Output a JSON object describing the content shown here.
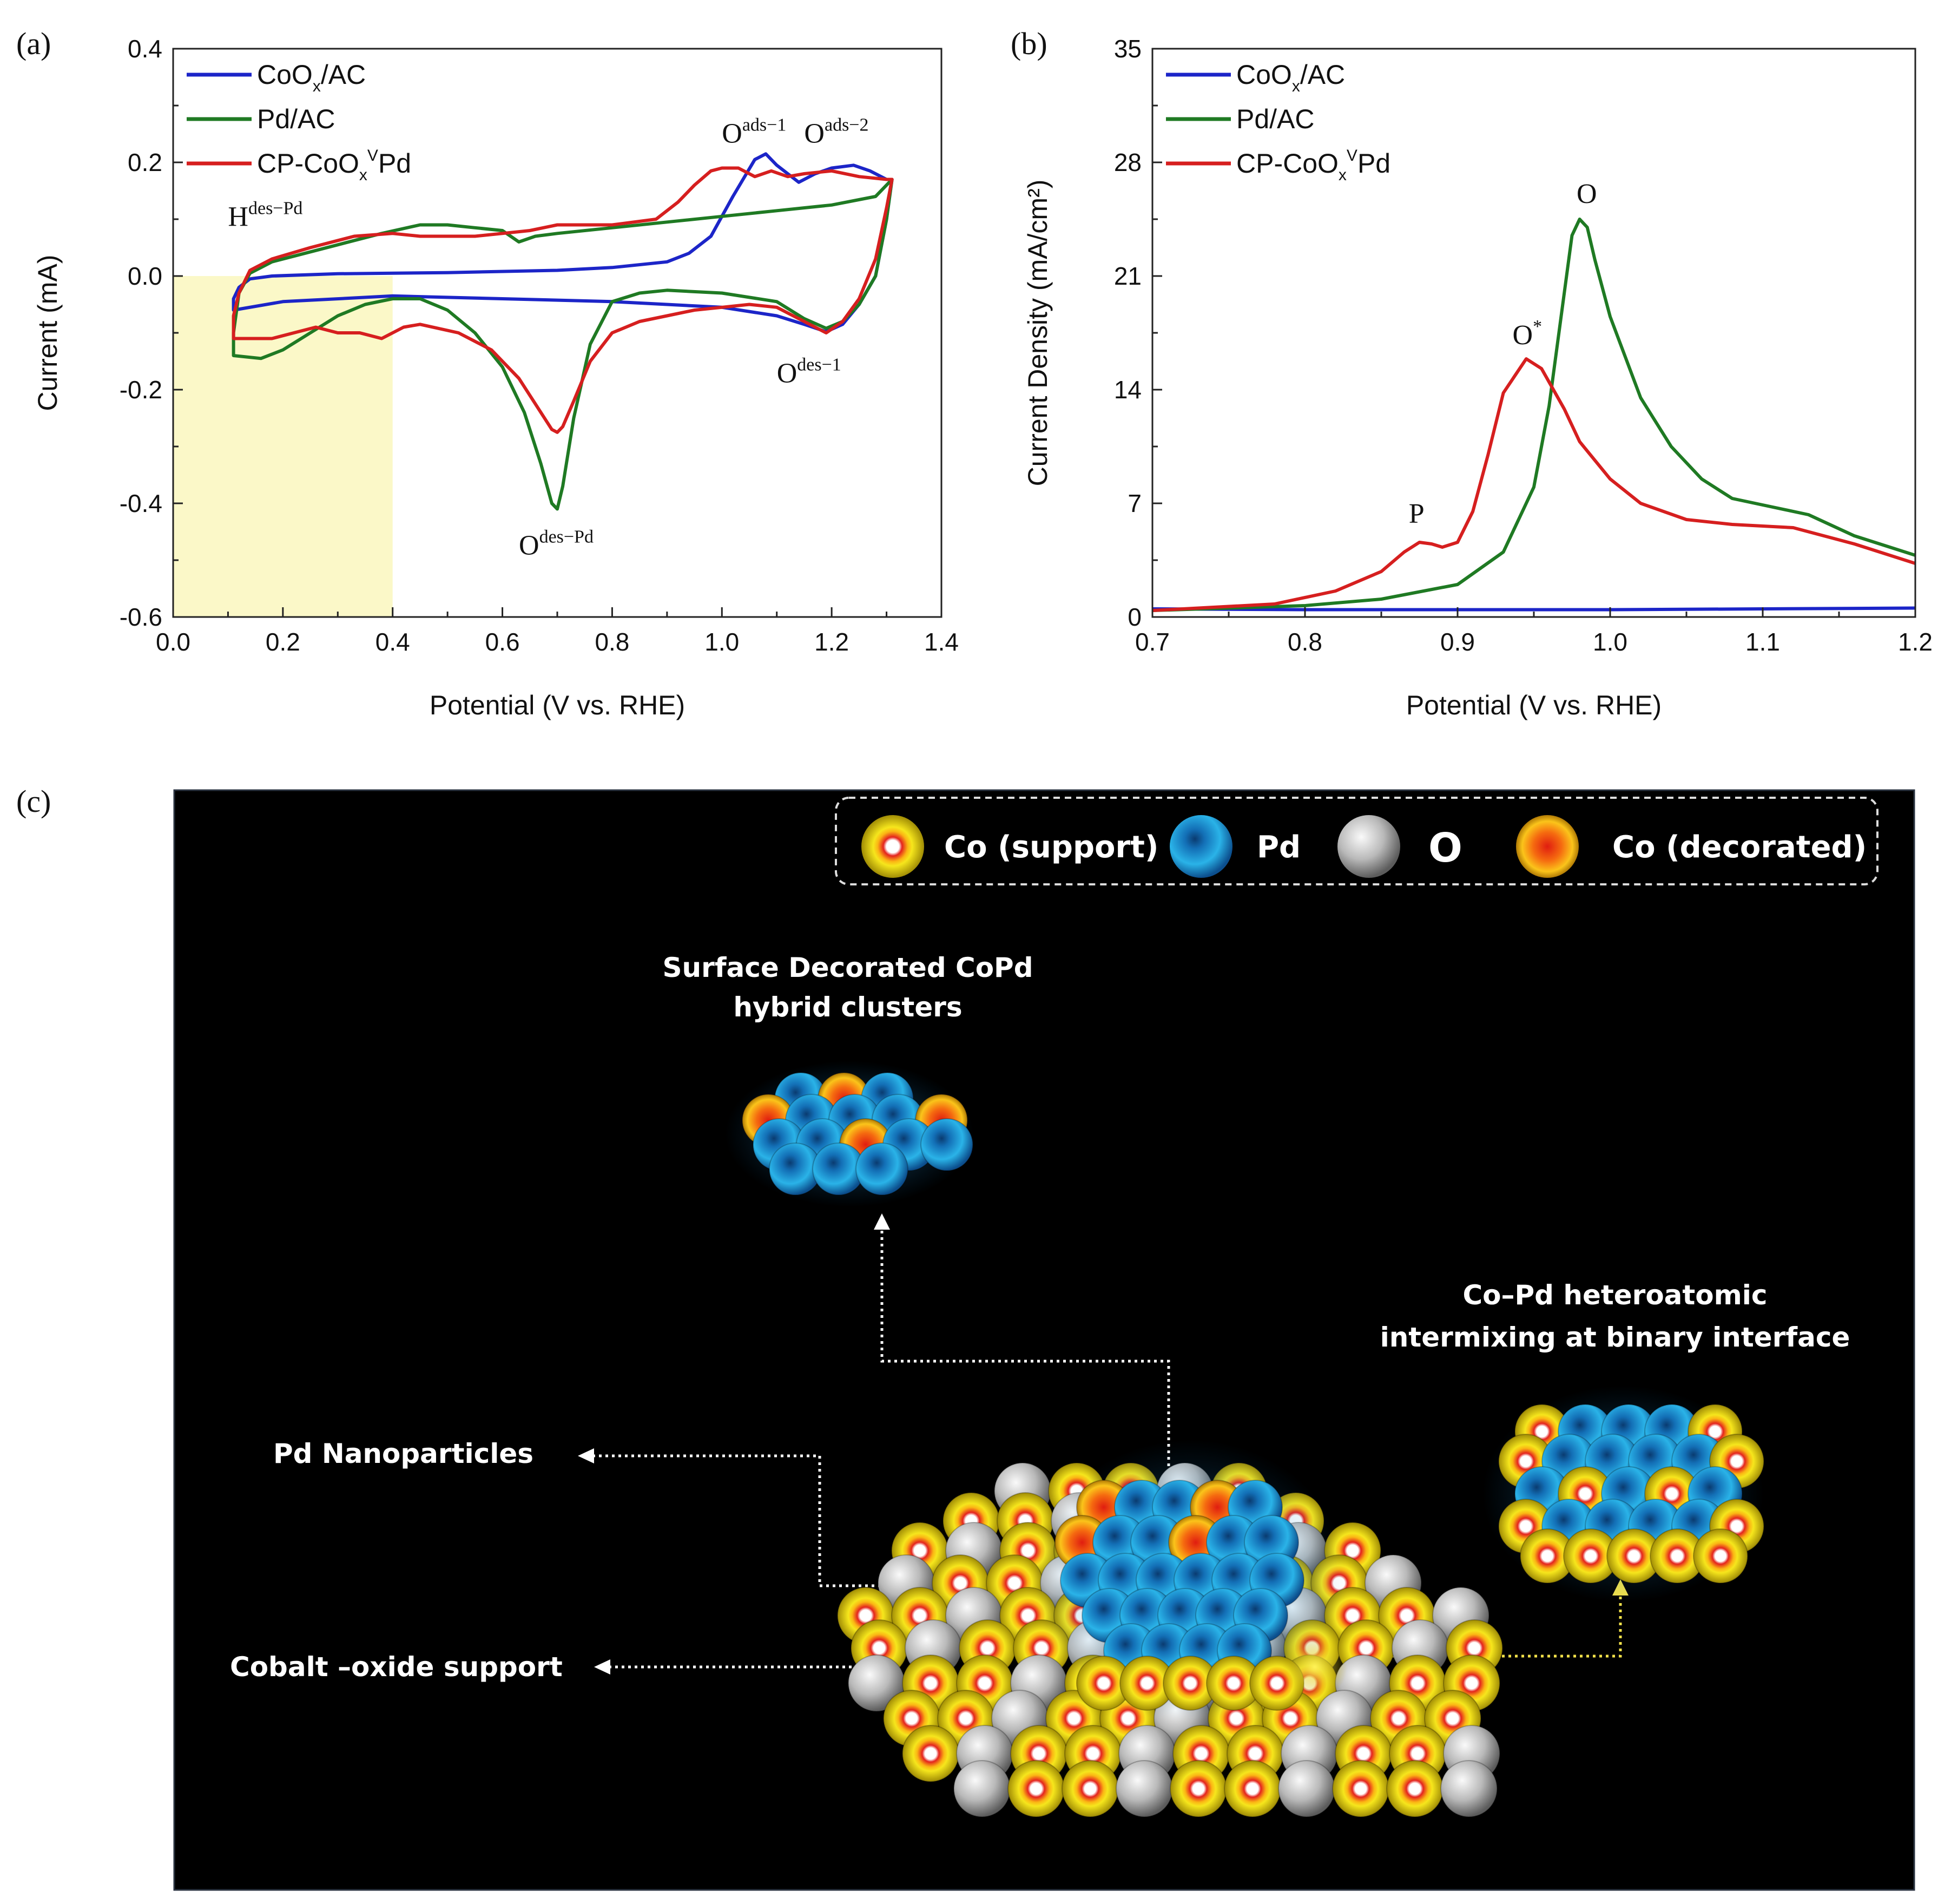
{
  "panel_labels": {
    "a": "(a)",
    "b": "(b)",
    "c": "(c)"
  },
  "colors": {
    "coox_ac": "#1c25c8",
    "pd_ac": "#1f7a23",
    "cp_coox_pd": "#d61f1f",
    "highlight": "#fbf8c8",
    "co_support": "#f2e21a",
    "pd": "#1e9ad6",
    "o": "#b4b4b4",
    "co_decorated": "#f05a14",
    "background": "#000000"
  },
  "chart_data": [
    {
      "id": "a",
      "type": "line",
      "title": "",
      "xlabel": "Potential (V vs. RHE)",
      "ylabel": "Current (mA)",
      "xlim": [
        0.0,
        1.4
      ],
      "ylim": [
        -0.6,
        0.4
      ],
      "xticks": [
        "0.0",
        "0.2",
        "0.4",
        "0.6",
        "0.8",
        "1.0",
        "1.2",
        "1.4"
      ],
      "yticks": [
        "-0.6",
        "-0.4",
        "-0.2",
        "0.0",
        "0.2",
        "0.4"
      ],
      "legend": {
        "position": "top-left",
        "entries": [
          {
            "base": "CoO",
            "sub": "x",
            "sup": "",
            "rest": "/AC"
          },
          {
            "base": "Pd/AC",
            "sub": "",
            "sup": "",
            "rest": ""
          },
          {
            "base": "CP-CoO",
            "sub": "x",
            "sup": "V",
            "rest": "Pd"
          }
        ]
      },
      "highlight_region": {
        "x": [
          0.0,
          0.4
        ],
        "y": [
          -0.6,
          0.0
        ]
      },
      "annotations": [
        {
          "main": "H",
          "sup": "des−Pd",
          "x": 0.1,
          "y": 0.088
        },
        {
          "main": "O",
          "sup": "ads−1",
          "x": 1.0,
          "y": 0.235
        },
        {
          "main": "O",
          "sup": "ads−2",
          "x": 1.15,
          "y": 0.235
        },
        {
          "main": "O",
          "sup": "des−1",
          "x": 1.1,
          "y": -0.187
        },
        {
          "main": "O",
          "sup": "des−Pd",
          "x": 0.63,
          "y": -0.49
        }
      ],
      "series": [
        {
          "name": "CoOx/AC",
          "color": "#1c25c8",
          "points": [
            [
              0.11,
              -0.06
            ],
            [
              0.11,
              -0.04
            ],
            [
              0.12,
              -0.02
            ],
            [
              0.14,
              -0.005
            ],
            [
              0.18,
              0.0
            ],
            [
              0.3,
              0.004
            ],
            [
              0.5,
              0.006
            ],
            [
              0.7,
              0.01
            ],
            [
              0.8,
              0.015
            ],
            [
              0.9,
              0.025
            ],
            [
              0.94,
              0.04
            ],
            [
              0.98,
              0.07
            ],
            [
              1.02,
              0.14
            ],
            [
              1.06,
              0.205
            ],
            [
              1.08,
              0.215
            ],
            [
              1.1,
              0.195
            ],
            [
              1.14,
              0.165
            ],
            [
              1.17,
              0.18
            ],
            [
              1.2,
              0.19
            ],
            [
              1.24,
              0.195
            ],
            [
              1.27,
              0.185
            ],
            [
              1.3,
              0.17
            ],
            [
              1.31,
              0.17
            ],
            [
              1.3,
              0.1
            ],
            [
              1.28,
              0.0
            ],
            [
              1.25,
              -0.05
            ],
            [
              1.22,
              -0.085
            ],
            [
              1.19,
              -0.098
            ],
            [
              1.15,
              -0.085
            ],
            [
              1.1,
              -0.07
            ],
            [
              1.0,
              -0.055
            ],
            [
              0.8,
              -0.045
            ],
            [
              0.6,
              -0.04
            ],
            [
              0.4,
              -0.035
            ],
            [
              0.2,
              -0.045
            ],
            [
              0.11,
              -0.06
            ]
          ]
        },
        {
          "name": "Pd/AC",
          "color": "#1f7a23",
          "points": [
            [
              0.11,
              -0.14
            ],
            [
              0.11,
              -0.1
            ],
            [
              0.12,
              -0.03
            ],
            [
              0.14,
              0.005
            ],
            [
              0.18,
              0.025
            ],
            [
              0.22,
              0.035
            ],
            [
              0.3,
              0.055
            ],
            [
              0.38,
              0.075
            ],
            [
              0.45,
              0.09
            ],
            [
              0.5,
              0.09
            ],
            [
              0.55,
              0.085
            ],
            [
              0.6,
              0.08
            ],
            [
              0.63,
              0.06
            ],
            [
              0.66,
              0.07
            ],
            [
              0.7,
              0.075
            ],
            [
              0.8,
              0.085
            ],
            [
              0.9,
              0.095
            ],
            [
              1.0,
              0.105
            ],
            [
              1.1,
              0.115
            ],
            [
              1.2,
              0.125
            ],
            [
              1.28,
              0.14
            ],
            [
              1.31,
              0.17
            ],
            [
              1.3,
              0.1
            ],
            [
              1.28,
              0.0
            ],
            [
              1.25,
              -0.05
            ],
            [
              1.22,
              -0.08
            ],
            [
              1.19,
              -0.092
            ],
            [
              1.15,
              -0.075
            ],
            [
              1.1,
              -0.045
            ],
            [
              1.0,
              -0.03
            ],
            [
              0.9,
              -0.025
            ],
            [
              0.85,
              -0.03
            ],
            [
              0.8,
              -0.045
            ],
            [
              0.76,
              -0.12
            ],
            [
              0.73,
              -0.25
            ],
            [
              0.71,
              -0.37
            ],
            [
              0.7,
              -0.41
            ],
            [
              0.69,
              -0.4
            ],
            [
              0.67,
              -0.33
            ],
            [
              0.64,
              -0.24
            ],
            [
              0.6,
              -0.16
            ],
            [
              0.55,
              -0.1
            ],
            [
              0.5,
              -0.06
            ],
            [
              0.45,
              -0.04
            ],
            [
              0.4,
              -0.04
            ],
            [
              0.35,
              -0.05
            ],
            [
              0.3,
              -0.07
            ],
            [
              0.25,
              -0.1
            ],
            [
              0.2,
              -0.13
            ],
            [
              0.16,
              -0.145
            ],
            [
              0.11,
              -0.14
            ]
          ]
        },
        {
          "name": "CP-CoOxVPd",
          "color": "#d61f1f",
          "points": [
            [
              0.11,
              -0.11
            ],
            [
              0.11,
              -0.07
            ],
            [
              0.12,
              -0.03
            ],
            [
              0.14,
              0.01
            ],
            [
              0.18,
              0.03
            ],
            [
              0.25,
              0.05
            ],
            [
              0.33,
              0.07
            ],
            [
              0.4,
              0.075
            ],
            [
              0.45,
              0.07
            ],
            [
              0.5,
              0.07
            ],
            [
              0.55,
              0.07
            ],
            [
              0.6,
              0.075
            ],
            [
              0.65,
              0.08
            ],
            [
              0.7,
              0.09
            ],
            [
              0.8,
              0.09
            ],
            [
              0.88,
              0.1
            ],
            [
              0.92,
              0.13
            ],
            [
              0.95,
              0.16
            ],
            [
              0.98,
              0.185
            ],
            [
              1.0,
              0.19
            ],
            [
              1.03,
              0.19
            ],
            [
              1.06,
              0.175
            ],
            [
              1.09,
              0.185
            ],
            [
              1.12,
              0.175
            ],
            [
              1.15,
              0.18
            ],
            [
              1.2,
              0.185
            ],
            [
              1.25,
              0.175
            ],
            [
              1.3,
              0.17
            ],
            [
              1.31,
              0.17
            ],
            [
              1.3,
              0.12
            ],
            [
              1.28,
              0.03
            ],
            [
              1.25,
              -0.04
            ],
            [
              1.22,
              -0.08
            ],
            [
              1.19,
              -0.1
            ],
            [
              1.15,
              -0.08
            ],
            [
              1.1,
              -0.055
            ],
            [
              1.05,
              -0.05
            ],
            [
              1.0,
              -0.055
            ],
            [
              0.95,
              -0.06
            ],
            [
              0.9,
              -0.07
            ],
            [
              0.85,
              -0.08
            ],
            [
              0.8,
              -0.1
            ],
            [
              0.76,
              -0.15
            ],
            [
              0.73,
              -0.22
            ],
            [
              0.71,
              -0.265
            ],
            [
              0.7,
              -0.275
            ],
            [
              0.69,
              -0.27
            ],
            [
              0.67,
              -0.24
            ],
            [
              0.63,
              -0.18
            ],
            [
              0.58,
              -0.13
            ],
            [
              0.52,
              -0.1
            ],
            [
              0.45,
              -0.085
            ],
            [
              0.42,
              -0.09
            ],
            [
              0.38,
              -0.11
            ],
            [
              0.34,
              -0.1
            ],
            [
              0.3,
              -0.1
            ],
            [
              0.26,
              -0.09
            ],
            [
              0.22,
              -0.1
            ],
            [
              0.18,
              -0.11
            ],
            [
              0.11,
              -0.11
            ]
          ]
        }
      ]
    },
    {
      "id": "b",
      "type": "line",
      "title": "",
      "xlabel": "Potential (V vs. RHE)",
      "ylabel": "Current Density (mA/cm²)",
      "xlim": [
        0.7,
        1.2
      ],
      "ylim": [
        0,
        35
      ],
      "xticks": [
        "0.7",
        "0.8",
        "0.9",
        "1.0",
        "1.1",
        "1.2"
      ],
      "yticks": [
        "0",
        "7",
        "14",
        "21",
        "28",
        "35"
      ],
      "legend": {
        "position": "top-left",
        "entries": [
          {
            "base": "CoO",
            "sub": "x",
            "sup": "",
            "rest": "/AC"
          },
          {
            "base": "Pd/AC",
            "sub": "",
            "sup": "",
            "rest": ""
          },
          {
            "base": "CP-CoO",
            "sub": "x",
            "sup": "V",
            "rest": "Pd"
          }
        ]
      },
      "annotations": [
        {
          "main": "P",
          "sup": "",
          "x": 0.868,
          "y": 5.8
        },
        {
          "main": "O",
          "sup": "*",
          "x": 0.936,
          "y": 16.8
        },
        {
          "main": "O",
          "sup": "",
          "x": 0.978,
          "y": 25.5
        }
      ],
      "series": [
        {
          "name": "CoOx/AC",
          "color": "#1c25c8",
          "points": [
            [
              0.7,
              0.5
            ],
            [
              0.8,
              0.45
            ],
            [
              0.9,
              0.45
            ],
            [
              1.0,
              0.45
            ],
            [
              1.1,
              0.5
            ],
            [
              1.2,
              0.55
            ]
          ]
        },
        {
          "name": "Pd/AC",
          "color": "#1f7a23",
          "points": [
            [
              0.7,
              0.4
            ],
            [
              0.8,
              0.7
            ],
            [
              0.85,
              1.1
            ],
            [
              0.9,
              2.0
            ],
            [
              0.93,
              4.0
            ],
            [
              0.95,
              8.0
            ],
            [
              0.96,
              13.0
            ],
            [
              0.97,
              20.0
            ],
            [
              0.975,
              23.5
            ],
            [
              0.98,
              24.5
            ],
            [
              0.985,
              24.0
            ],
            [
              0.99,
              22.0
            ],
            [
              1.0,
              18.5
            ],
            [
              1.02,
              13.5
            ],
            [
              1.04,
              10.5
            ],
            [
              1.06,
              8.5
            ],
            [
              1.08,
              7.3
            ],
            [
              1.1,
              6.9
            ],
            [
              1.13,
              6.3
            ],
            [
              1.16,
              5.0
            ],
            [
              1.2,
              3.8
            ]
          ]
        },
        {
          "name": "CP-CoOxVPd",
          "color": "#d61f1f",
          "points": [
            [
              0.7,
              0.4
            ],
            [
              0.78,
              0.8
            ],
            [
              0.82,
              1.6
            ],
            [
              0.85,
              2.8
            ],
            [
              0.865,
              4.0
            ],
            [
              0.875,
              4.6
            ],
            [
              0.883,
              4.5
            ],
            [
              0.89,
              4.3
            ],
            [
              0.9,
              4.6
            ],
            [
              0.91,
              6.5
            ],
            [
              0.92,
              10.0
            ],
            [
              0.93,
              13.8
            ],
            [
              0.945,
              15.9
            ],
            [
              0.955,
              15.3
            ],
            [
              0.97,
              12.8
            ],
            [
              0.98,
              10.8
            ],
            [
              1.0,
              8.5
            ],
            [
              1.02,
              7.0
            ],
            [
              1.05,
              6.0
            ],
            [
              1.08,
              5.7
            ],
            [
              1.12,
              5.5
            ],
            [
              1.16,
              4.5
            ],
            [
              1.2,
              3.3
            ]
          ]
        }
      ]
    }
  ],
  "schematic": {
    "legend": {
      "co_support": "Co (support)",
      "pd": "Pd",
      "o": "O",
      "co_decorated": "Co (decorated)"
    },
    "labels": {
      "surface_line1": "Surface Decorated CoPd",
      "surface_line2": "hybrid clusters",
      "interface_line1": "Co–Pd heteroatomic",
      "interface_line2": "intermixing at binary interface",
      "pd_nanoparticles": "Pd Nanoparticles",
      "cobalt_support": "Cobalt –oxide support"
    }
  }
}
